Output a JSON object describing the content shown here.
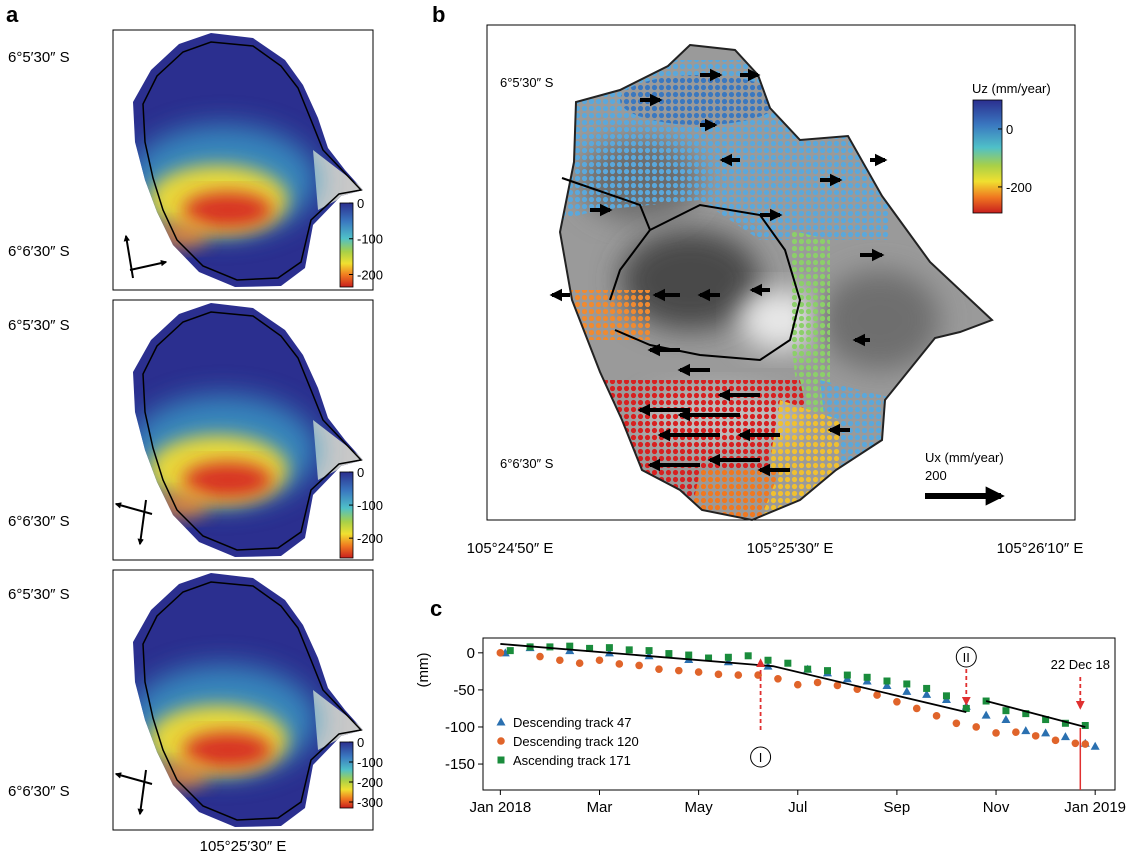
{
  "panel_a": {
    "label": "a",
    "lon_label": "105°25′30″ E",
    "maps": [
      {
        "lat_labels": [
          "6°5′30″ S",
          "6°6′30″ S"
        ],
        "colorbar": {
          "lim": [
            -235,
            0
          ],
          "ticks": [
            0,
            -100,
            -200
          ]
        }
      },
      {
        "lat_labels": [
          "6°5′30″ S",
          "6°6′30″ S"
        ],
        "colorbar": {
          "lim": [
            -260,
            0
          ],
          "ticks": [
            0,
            -100,
            -200
          ]
        }
      },
      {
        "lat_labels": [
          "6°5′30″ S",
          "6°6′30″ S"
        ],
        "colorbar": {
          "lim": [
            -330,
            0
          ],
          "ticks": [
            0,
            -100,
            -200,
            -300
          ]
        }
      }
    ]
  },
  "panel_b": {
    "label": "b",
    "lat_labels": [
      "6°5′30″ S",
      "6°6′30″ S"
    ],
    "lon_labels": [
      "105°24′50″ E",
      "105°25′30″ E",
      "105°26′10″ E"
    ],
    "colorbar": {
      "title": "Uz (mm/year)",
      "lim": [
        -290,
        100
      ],
      "ticks": [
        0,
        -200
      ]
    },
    "scale_arrow": {
      "title": "Ux (mm/year)",
      "value": 200
    }
  },
  "chart_data": {
    "type": "scatter",
    "label": "c",
    "y_label": "(mm)",
    "xlim": [
      -0.35,
      12.4
    ],
    "ylim": [
      -185,
      20
    ],
    "xticks": [
      {
        "value": 0,
        "label": "Jan 2018"
      },
      {
        "value": 2,
        "label": "Mar"
      },
      {
        "value": 4,
        "label": "May"
      },
      {
        "value": 6,
        "label": "Jul"
      },
      {
        "value": 8,
        "label": "Sep"
      },
      {
        "value": 10,
        "label": "Nov"
      },
      {
        "value": 12,
        "label": "Jan 2019"
      }
    ],
    "yticks": [
      0,
      -50,
      -100,
      -150
    ],
    "legend": "lower left",
    "series": [
      {
        "name": "Descending track 47",
        "color": "#2a70b0",
        "marker": "triangle",
        "x": [
          0.1,
          0.6,
          1.4,
          2.2,
          3.0,
          3.8,
          4.6,
          5.4,
          6.2,
          6.6,
          7.0,
          7.4,
          7.8,
          8.2,
          8.6,
          9.0,
          9.4,
          9.8,
          10.2,
          10.6,
          11.0,
          11.4,
          11.8,
          12.0
        ],
        "values": [
          0,
          7,
          3,
          0,
          -4,
          -9,
          -12,
          -18,
          -22,
          -27,
          -35,
          -38,
          -44,
          -52,
          -56,
          -63,
          -72,
          -84,
          -90,
          -105,
          -108,
          -113,
          -122,
          -126
        ]
      },
      {
        "name": "Descending track 120",
        "color": "#e0642a",
        "marker": "circle",
        "x": [
          0.0,
          0.8,
          1.2,
          1.6,
          2.0,
          2.4,
          2.8,
          3.2,
          3.6,
          4.0,
          4.4,
          4.8,
          5.2,
          5.6,
          6.0,
          6.4,
          6.8,
          7.2,
          7.6,
          8.0,
          8.4,
          8.8,
          9.2,
          9.6,
          10.0,
          10.4,
          10.8,
          11.2,
          11.6,
          11.8
        ],
        "values": [
          0,
          -5,
          -10,
          -14,
          -10,
          -15,
          -17,
          -22,
          -24,
          -26,
          -29,
          -30,
          -30,
          -35,
          -43,
          -40,
          -44,
          -49,
          -57,
          -66,
          -75,
          -85,
          -95,
          -100,
          -108,
          -107,
          -112,
          -118,
          -122,
          -123
        ]
      },
      {
        "name": "Ascending track 171",
        "color": "#1a8c3c",
        "marker": "square",
        "x": [
          0.2,
          0.6,
          1.0,
          1.4,
          1.8,
          2.2,
          2.6,
          3.0,
          3.4,
          3.8,
          4.2,
          4.6,
          5.0,
          5.4,
          5.8,
          6.2,
          6.6,
          7.0,
          7.4,
          7.8,
          8.2,
          8.6,
          9.0,
          9.4,
          9.8,
          10.2,
          10.6,
          11.0,
          11.4,
          11.8
        ],
        "values": [
          3,
          8,
          8,
          9,
          6,
          7,
          4,
          3,
          -1,
          -3,
          -7,
          -6,
          -4,
          -10,
          -14,
          -22,
          -24,
          -30,
          -33,
          -38,
          -42,
          -48,
          -58,
          -75,
          -65,
          -78,
          -82,
          -90,
          -95,
          -98
        ]
      }
    ],
    "model_line": {
      "color": "#000000",
      "x": [
        0,
        5.5,
        9.4,
        9.6,
        9.8,
        11.8
      ],
      "values": [
        12,
        -18,
        -80,
        null,
        -65,
        -100
      ]
    },
    "annotations": [
      {
        "text": "I",
        "x": 5.25
      },
      {
        "text": "II",
        "x": 9.4
      },
      {
        "text": "22 Dec 18",
        "x": 11.7
      }
    ]
  }
}
